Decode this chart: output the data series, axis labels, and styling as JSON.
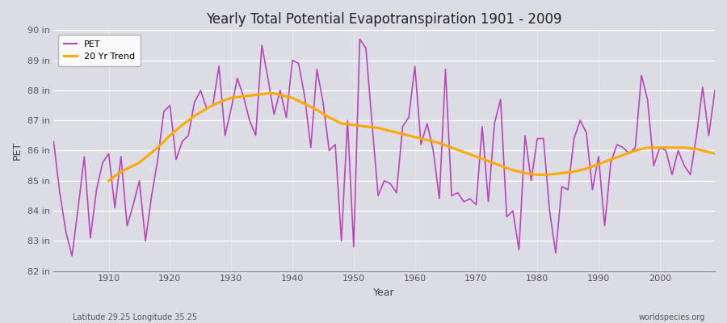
{
  "title": "Yearly Total Potential Evapotranspiration 1901 - 2009",
  "ylabel": "PET",
  "xlabel": "Year",
  "footer_left": "Latitude 29.25 Longitude 35.25",
  "footer_right": "worldspecies.org",
  "bg_color": "#dcdce4",
  "plot_bg_color": "#dcdce4",
  "pet_color": "#bb44bb",
  "trend_color": "#ffaa00",
  "ylim": [
    82,
    90
  ],
  "yticks": [
    82,
    83,
    84,
    85,
    86,
    87,
    88,
    89,
    90
  ],
  "ytick_labels": [
    "82 in",
    "83 in",
    "84 in",
    "85 in",
    "86 in",
    "87 in",
    "88 in",
    "89 in",
    "90 in"
  ],
  "years": [
    1901,
    1902,
    1903,
    1904,
    1905,
    1906,
    1907,
    1908,
    1909,
    1910,
    1911,
    1912,
    1913,
    1914,
    1915,
    1916,
    1917,
    1918,
    1919,
    1920,
    1921,
    1922,
    1923,
    1924,
    1925,
    1926,
    1927,
    1928,
    1929,
    1930,
    1931,
    1932,
    1933,
    1934,
    1935,
    1936,
    1937,
    1938,
    1939,
    1940,
    1941,
    1942,
    1943,
    1944,
    1945,
    1946,
    1947,
    1948,
    1949,
    1950,
    1951,
    1952,
    1953,
    1954,
    1955,
    1956,
    1957,
    1958,
    1959,
    1960,
    1961,
    1962,
    1963,
    1964,
    1965,
    1966,
    1967,
    1968,
    1969,
    1970,
    1971,
    1972,
    1973,
    1974,
    1975,
    1976,
    1977,
    1978,
    1979,
    1980,
    1981,
    1982,
    1983,
    1984,
    1985,
    1986,
    1987,
    1988,
    1989,
    1990,
    1991,
    1992,
    1993,
    1994,
    1995,
    1996,
    1997,
    1998,
    1999,
    2000,
    2001,
    2002,
    2003,
    2004,
    2005,
    2006,
    2007,
    2008,
    2009
  ],
  "pet_values": [
    86.3,
    84.6,
    83.3,
    82.5,
    84.1,
    85.8,
    83.1,
    84.7,
    85.6,
    85.9,
    84.1,
    85.8,
    83.5,
    84.2,
    85.0,
    83.0,
    84.5,
    85.7,
    87.3,
    87.5,
    85.7,
    86.3,
    86.5,
    87.6,
    88.0,
    87.4,
    87.5,
    88.8,
    86.5,
    87.4,
    88.4,
    87.8,
    87.0,
    86.5,
    89.5,
    88.4,
    87.2,
    88.0,
    87.1,
    89.0,
    88.9,
    87.8,
    86.1,
    88.7,
    87.6,
    86.0,
    86.2,
    83.0,
    87.0,
    82.8,
    89.7,
    89.4,
    86.9,
    84.5,
    85.0,
    84.9,
    84.6,
    86.8,
    87.1,
    88.8,
    86.2,
    86.9,
    86.0,
    84.4,
    88.7,
    84.5,
    84.6,
    84.3,
    84.4,
    84.2,
    86.8,
    84.3,
    86.9,
    87.7,
    83.8,
    84.0,
    82.7,
    86.5,
    85.0,
    86.4,
    86.4,
    84.0,
    82.6,
    84.8,
    84.7,
    86.4,
    87.0,
    86.6,
    84.7,
    85.8,
    83.5,
    85.6,
    86.2,
    86.1,
    85.9,
    86.1,
    88.5,
    87.7,
    85.5,
    86.1,
    86.0,
    85.2,
    86.0,
    85.5,
    85.2,
    86.5,
    88.1,
    86.5,
    88.0
  ],
  "trend_years": [
    1910,
    1912,
    1915,
    1918,
    1920,
    1922,
    1924,
    1926,
    1928,
    1930,
    1932,
    1934,
    1936,
    1937,
    1938,
    1939,
    1940,
    1942,
    1944,
    1946,
    1948,
    1950,
    1952,
    1954,
    1956,
    1958,
    1960,
    1962,
    1964,
    1966,
    1968,
    1970,
    1972,
    1974,
    1976,
    1978,
    1980,
    1982,
    1984,
    1986,
    1988,
    1990,
    1992,
    1994,
    1996,
    1998,
    2000,
    2002,
    2004,
    2006,
    2008,
    2009
  ],
  "trend_values": [
    85.0,
    85.3,
    85.6,
    86.1,
    86.5,
    86.85,
    87.15,
    87.4,
    87.6,
    87.75,
    87.8,
    87.85,
    87.9,
    87.9,
    87.85,
    87.8,
    87.75,
    87.55,
    87.35,
    87.1,
    86.9,
    86.85,
    86.8,
    86.75,
    86.65,
    86.55,
    86.45,
    86.35,
    86.25,
    86.1,
    85.95,
    85.8,
    85.65,
    85.5,
    85.35,
    85.25,
    85.2,
    85.2,
    85.25,
    85.3,
    85.4,
    85.55,
    85.7,
    85.85,
    86.0,
    86.1,
    86.1,
    86.1,
    86.1,
    86.05,
    85.95,
    85.9
  ]
}
